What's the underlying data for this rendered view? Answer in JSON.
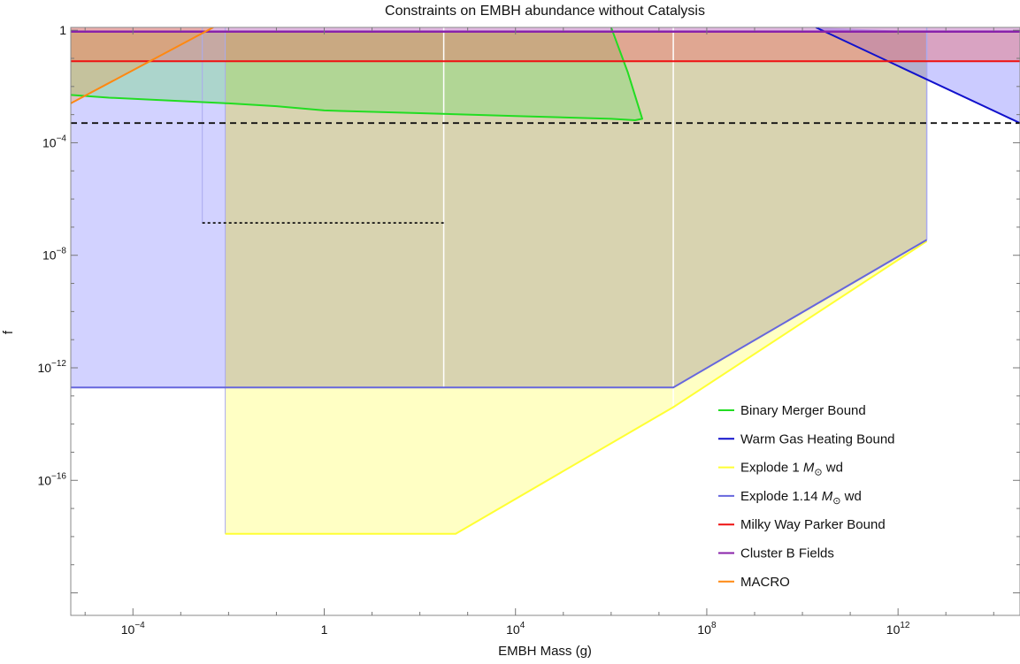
{
  "chart_data": {
    "type": "area",
    "title": "Constraints on EMBH abundance without Catalysis",
    "xlabel": "EMBH Mass (g)",
    "ylabel": "f",
    "x_scale": "log10",
    "y_scale": "log10",
    "xlim_log10": [
      -5.3,
      14.55
    ],
    "ylim_log10": [
      -20.8,
      0.1
    ],
    "x_ticks": [
      {
        "base": "10",
        "exp": "−4",
        "log": -4
      },
      {
        "base": "1",
        "exp": "",
        "log": 0
      },
      {
        "base": "10",
        "exp": "4",
        "log": 4
      },
      {
        "base": "10",
        "exp": "8",
        "log": 8
      },
      {
        "base": "10",
        "exp": "12",
        "log": 12
      }
    ],
    "y_ticks": [
      {
        "base": "1",
        "exp": "",
        "log": 0
      },
      {
        "base": "10",
        "exp": "−4",
        "log": -4
      },
      {
        "base": "10",
        "exp": "−8",
        "log": -8
      },
      {
        "base": "10",
        "exp": "−12",
        "log": -12
      },
      {
        "base": "10",
        "exp": "−16",
        "log": -16
      }
    ],
    "regions": [
      {
        "name": "Explode 1.14 M wd region",
        "color": "#7777ff",
        "opacity": 0.33,
        "points_log": [
          [
            -5.3,
            -12.7
          ],
          [
            7.3,
            -12.7
          ],
          [
            12.6,
            -7.45
          ],
          [
            12.6,
            -0.05
          ],
          [
            -5.3,
            -0.05
          ]
        ]
      },
      {
        "name": "Explode 1 M wd region",
        "color": "#ffff55",
        "opacity": 0.35,
        "points_log": [
          [
            -2.07,
            -17.9
          ],
          [
            2.75,
            -17.9
          ],
          [
            7.3,
            -13.4
          ],
          [
            12.6,
            -7.5
          ],
          [
            12.6,
            -0.05
          ],
          [
            -2.07,
            -0.05
          ]
        ]
      },
      {
        "name": "Overlap region",
        "color": "#d2c8a0",
        "opacity": 0.55,
        "points_log": [
          [
            -2.07,
            -12.7
          ],
          [
            7.3,
            -12.7
          ],
          [
            12.6,
            -7.45
          ],
          [
            12.6,
            -0.05
          ],
          [
            -2.07,
            -0.05
          ]
        ]
      },
      {
        "name": "Binary Merger region",
        "color": "#55dd55",
        "opacity": 0.3,
        "points_log": [
          [
            -5.3,
            -2.3
          ],
          [
            -4.5,
            -2.4
          ],
          [
            -2,
            -2.6
          ],
          [
            -1,
            -2.7
          ],
          [
            0,
            -2.85
          ],
          [
            2,
            -2.95
          ],
          [
            4,
            -3.05
          ],
          [
            6,
            -3.15
          ],
          [
            6.5,
            -3.2
          ],
          [
            6.65,
            -3.15
          ],
          [
            6.55,
            -2.6
          ],
          [
            6.35,
            -1.5
          ],
          [
            6,
            -0.05
          ],
          [
            -5.3,
            -0.05
          ]
        ]
      },
      {
        "name": "Warm Gas region",
        "color": "#7777ff",
        "opacity": 0.38,
        "points_log": [
          [
            10.28,
            0.1
          ],
          [
            14.55,
            -3.3
          ],
          [
            14.55,
            -0.05
          ],
          [
            12.6,
            -0.05
          ]
        ]
      },
      {
        "name": "Milky Way region",
        "color": "#ee6666",
        "opacity": 0.4,
        "points_log": [
          [
            -5.3,
            -0.05
          ],
          [
            14.55,
            -0.05
          ],
          [
            14.55,
            -1.1
          ],
          [
            -5.3,
            -1.1
          ]
        ]
      },
      {
        "name": "Cluster region",
        "color": "#aa33aa",
        "opacity": 0.35,
        "points_log": [
          [
            -5.3,
            0.1
          ],
          [
            14.55,
            0.1
          ],
          [
            14.55,
            -0.05
          ],
          [
            -5.3,
            -0.05
          ]
        ]
      },
      {
        "name": "MACRO region",
        "color": "#ff9933",
        "opacity": 0.3,
        "points_log": [
          [
            -5.3,
            -2.6
          ],
          [
            -2.32,
            0.1
          ],
          [
            -5.3,
            0.1
          ]
        ]
      }
    ],
    "boundary_lines": [
      {
        "color": "#aaaaee",
        "width": 1,
        "points_log": [
          [
            -2.55,
            -6.85
          ],
          [
            -2.55,
            0.1
          ]
        ]
      },
      {
        "color": "#aaaaee",
        "width": 1,
        "points_log": [
          [
            -2.07,
            -17.9
          ],
          [
            -2.07,
            0.1
          ]
        ]
      },
      {
        "color": "#ffffff",
        "width": 1.5,
        "points_log": [
          [
            2.5,
            -12.7
          ],
          [
            2.5,
            0.1
          ]
        ]
      },
      {
        "color": "#ffffff",
        "width": 1.5,
        "points_log": [
          [
            7.3,
            -13.4
          ],
          [
            7.3,
            0.1
          ]
        ]
      },
      {
        "color": "#aaaaee",
        "width": 1.5,
        "points_log": [
          [
            12.6,
            -7.45
          ],
          [
            12.6,
            0.1
          ]
        ]
      }
    ],
    "series": [
      {
        "name": "Binary Merger Bound",
        "color": "#22dd22",
        "width": 2,
        "points_log": [
          [
            -5.3,
            -2.3
          ],
          [
            -4.5,
            -2.4
          ],
          [
            -2,
            -2.6
          ],
          [
            -1,
            -2.7
          ],
          [
            0,
            -2.85
          ],
          [
            2,
            -2.95
          ],
          [
            4,
            -3.05
          ],
          [
            6,
            -3.15
          ],
          [
            6.5,
            -3.2
          ],
          [
            6.65,
            -3.15
          ],
          [
            6.55,
            -2.6
          ],
          [
            6.35,
            -1.5
          ],
          [
            6,
            0.1
          ]
        ]
      },
      {
        "name": "Warm Gas Heating Bound",
        "color": "#1111cc",
        "width": 2,
        "points_log": [
          [
            10.28,
            0.1
          ],
          [
            14.55,
            -3.3
          ]
        ]
      },
      {
        "name": "Explode 1 M wd",
        "color": "#ffff33",
        "width": 2,
        "points_log": [
          [
            -2.07,
            -17.9
          ],
          [
            2.75,
            -17.9
          ],
          [
            7.3,
            -13.4
          ],
          [
            12.6,
            -7.5
          ]
        ]
      },
      {
        "name": "Explode 1.14 M wd",
        "color": "#6666dd",
        "width": 2,
        "points_log": [
          [
            -5.3,
            -12.7
          ],
          [
            7.3,
            -12.7
          ],
          [
            12.6,
            -7.45
          ]
        ]
      },
      {
        "name": "Milky Way Parker Bound",
        "color": "#ee1111",
        "width": 2,
        "points_log": [
          [
            -5.3,
            -1.1
          ],
          [
            14.55,
            -1.1
          ]
        ]
      },
      {
        "name": "Cluster B Fields",
        "color": "#8822aa",
        "width": 2.5,
        "points_log": [
          [
            -5.3,
            -0.05
          ],
          [
            14.55,
            -0.05
          ]
        ]
      },
      {
        "name": "MACRO",
        "color": "#ff8811",
        "width": 2,
        "points_log": [
          [
            -5.3,
            -2.6
          ],
          [
            -2.32,
            0.1
          ]
        ]
      },
      {
        "name": "",
        "color": "#111111",
        "width": 1.8,
        "dash": "7,5",
        "points_log": [
          [
            -5.3,
            -3.3
          ],
          [
            14.55,
            -3.3
          ]
        ]
      },
      {
        "name": "",
        "color": "#111111",
        "width": 1.8,
        "dash": "3,3",
        "points_log": [
          [
            -2.55,
            -6.85
          ],
          [
            2.5,
            -6.85
          ]
        ]
      }
    ],
    "legend": {
      "placement": "bottom-right",
      "entries": [
        {
          "label": "Binary Merger Bound",
          "color": "#22dd22"
        },
        {
          "label": "Warm Gas Heating Bound",
          "color": "#1111cc"
        },
        {
          "label_pre": "Explode 1 ",
          "label_m": "M",
          "label_sub": "⊙",
          "label_post": " wd",
          "color": "#ffff33"
        },
        {
          "label_pre": "Explode 1.14 ",
          "label_m": "M",
          "label_sub": "⊙",
          "label_post": " wd",
          "color": "#6666dd"
        },
        {
          "label": "Milky Way Parker Bound",
          "color": "#ee1111"
        },
        {
          "label": "Cluster B Fields",
          "color": "#8822aa"
        },
        {
          "label": "MACRO",
          "color": "#ff8811"
        }
      ]
    }
  }
}
